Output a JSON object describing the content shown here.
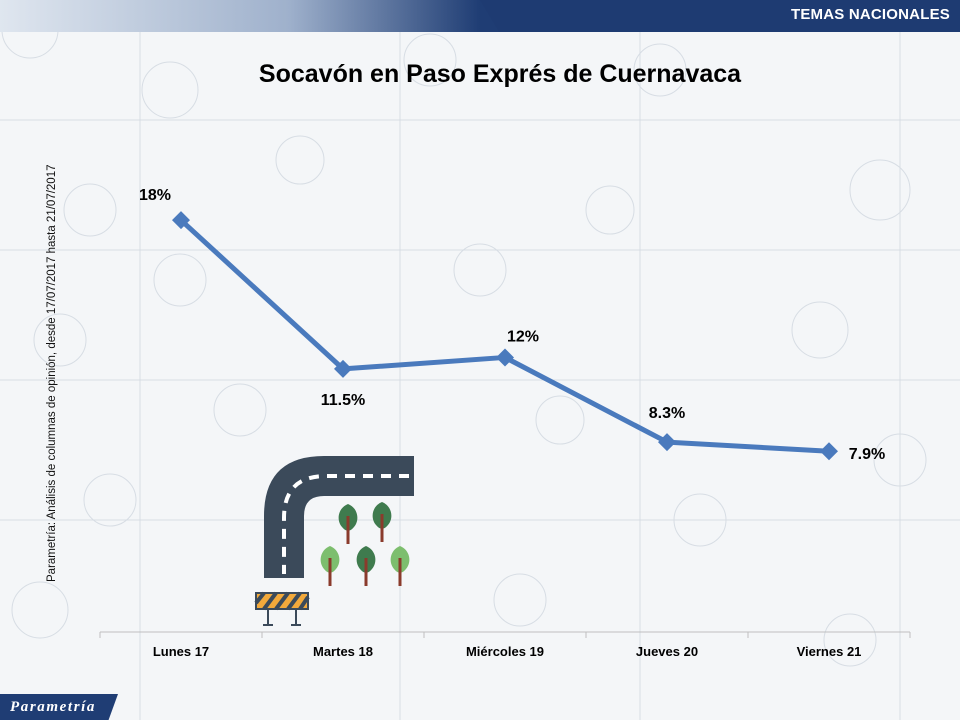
{
  "header": {
    "section_label": "TEMAS NACIONALES"
  },
  "chart_data": {
    "type": "line",
    "title": "Socavón en Paso Exprés de Cuernavaca",
    "categories": [
      "Lunes 17",
      "Martes 18",
      "Miércoles 19",
      "Jueves 20",
      "Viernes 21"
    ],
    "series": [
      {
        "values": [
          18,
          11.5,
          12,
          8.3,
          7.9
        ]
      }
    ],
    "data_labels": [
      "18%",
      "11.5%",
      "12%",
      "8.3%",
      "7.9%"
    ],
    "ylim": [
      0,
      25
    ],
    "grid": false,
    "legend": "none",
    "line_color": "#4a7abd"
  },
  "side_note": "Parametría: Análisis de columnas de opinión, desde 17/07/2017 hasta 21/07/2017",
  "logo": {
    "text": "Parametría"
  },
  "colors": {
    "brand": "#1f3d74",
    "road": "#3b4a5a",
    "tree_dark": "#3f7b4e",
    "tree_light": "#7dbe6e",
    "trunk": "#8a3b2c",
    "barrier": "#f2a93b"
  }
}
